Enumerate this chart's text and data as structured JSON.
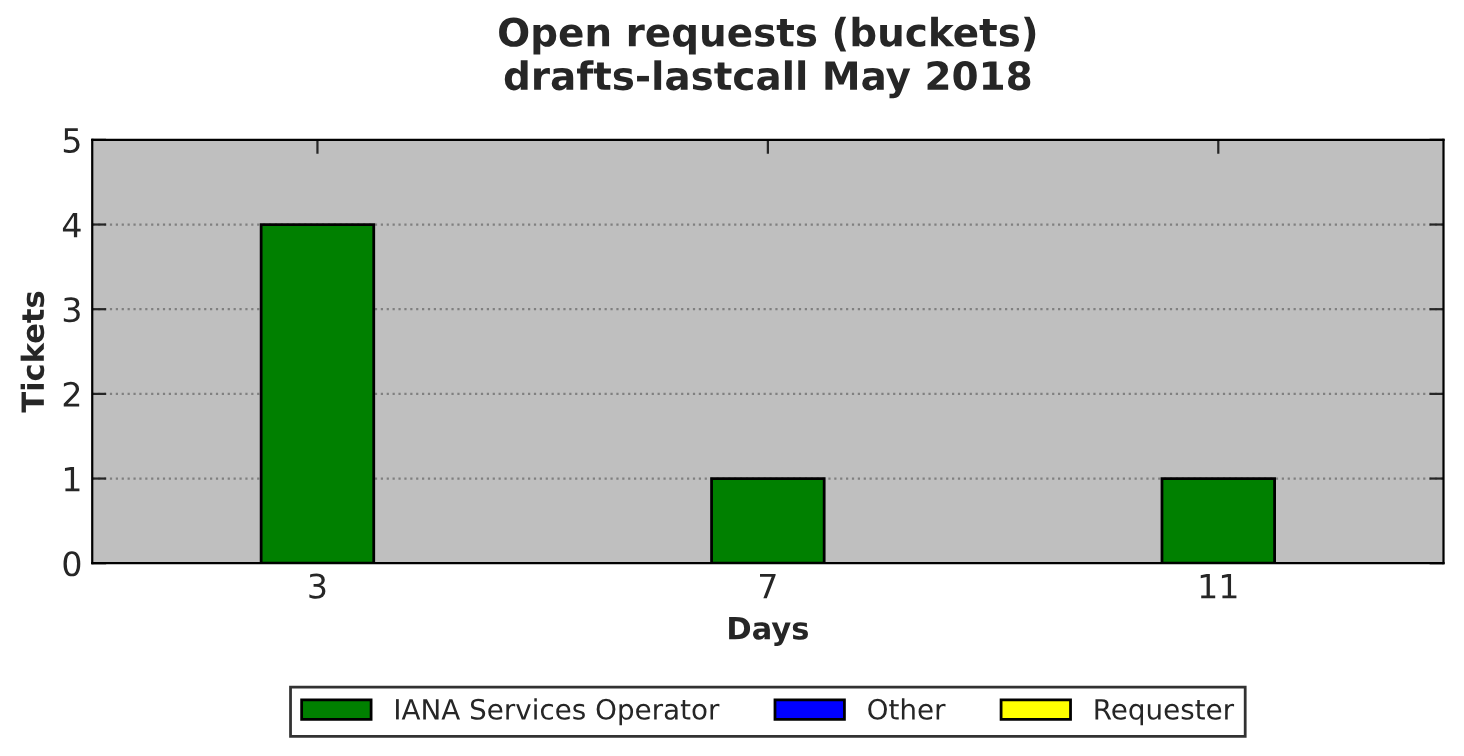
{
  "chart_data": {
    "type": "bar",
    "title": "Open requests (buckets)\ndrafts-lastcall May 2018",
    "xlabel": "Days",
    "ylabel": "Tickets",
    "x": [
      3,
      7,
      11
    ],
    "xlim": [
      1,
      13
    ],
    "xticks": [
      3,
      7,
      11
    ],
    "ylim": [
      0,
      5
    ],
    "yticks": [
      0,
      1,
      2,
      3,
      4,
      5
    ],
    "stacked": true,
    "grid": "y",
    "legend": "bottom",
    "series": [
      {
        "name": "IANA Services Operator",
        "color": "#008000",
        "values": [
          4,
          1,
          1
        ]
      },
      {
        "name": "Other",
        "color": "#0000ff",
        "values": [
          0,
          0,
          0
        ]
      },
      {
        "name": "Requester",
        "color": "#ffff00",
        "values": [
          0,
          0,
          0
        ]
      }
    ]
  }
}
